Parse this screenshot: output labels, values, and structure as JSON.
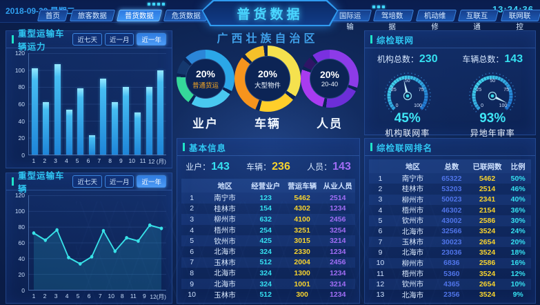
{
  "header": {
    "date": "2018-09-29 星期二",
    "time": "13:24:36",
    "title": "普货数据",
    "subtitle": "广西壮族自治区",
    "nav_left": [
      {
        "label": "首页",
        "active": false
      },
      {
        "label": "旅客数据",
        "active": false
      },
      {
        "label": "普货数据",
        "active": true
      },
      {
        "label": "危货数据",
        "active": false
      },
      {
        "label": "出租数据",
        "active": false
      }
    ],
    "nav_right": [
      {
        "label": "国际运输",
        "active": false
      },
      {
        "label": "驾培数据",
        "active": false
      },
      {
        "label": "机动维修",
        "active": false
      },
      {
        "label": "互联互通",
        "active": false
      },
      {
        "label": "联网联控",
        "active": false
      }
    ]
  },
  "range_buttons": [
    "近七天",
    "近一月",
    "近一年"
  ],
  "range_active_index": 2,
  "panels": {
    "capacity": {
      "title": "重型运输车辆运力"
    },
    "vehicle": {
      "title": "重型运输车辆"
    },
    "basic_info": {
      "title": "基本信息",
      "stats": [
        {
          "label": "业户：",
          "value": "143"
        },
        {
          "label": "车辆：",
          "value": "236"
        },
        {
          "label": "人员：",
          "value": "143"
        }
      ]
    },
    "inspection": {
      "title": "综检联网",
      "stats": [
        {
          "label": "机构总数：",
          "value": "230"
        },
        {
          "label": "车辆总数：",
          "value": "143"
        }
      ]
    },
    "ranking": {
      "title": "综检联网排名"
    }
  },
  "colors": {
    "accent_cyan": "#2fc6f2",
    "accent_teal": "#1fe3c9",
    "value_cyan": "#35e0f0",
    "value_yellow": "#f7d32e",
    "value_purple": "#a06df5",
    "value_blue": "#4f74e8",
    "bar_fill": "#2ba3e0",
    "line_stroke": "#38e2e8"
  },
  "chart_data": [
    {
      "id": "capacity_bar",
      "type": "bar",
      "title": "重型运输车辆运力",
      "categories": [
        "1",
        "2",
        "3",
        "4",
        "5",
        "6",
        "7",
        "8",
        "9",
        "10",
        "11",
        "12 (月)"
      ],
      "values": [
        102,
        62,
        107,
        53,
        78,
        23,
        90,
        62,
        80,
        50,
        80,
        100
      ],
      "xlabel": "月",
      "ylabel": "",
      "ylim": [
        0,
        120
      ],
      "yticks": [
        0,
        20,
        40,
        60,
        80,
        100,
        120
      ],
      "grid": true,
      "active_range": "近一年"
    },
    {
      "id": "vehicle_line",
      "type": "line",
      "title": "重型运输车辆",
      "categories": [
        "1",
        "2",
        "3",
        "4",
        "5",
        "6",
        "7",
        "10",
        "8",
        "11",
        "9",
        "12(月)"
      ],
      "values": [
        72,
        63,
        76,
        41,
        33,
        42,
        75,
        49,
        66,
        62,
        82,
        78
      ],
      "xlabel": "月",
      "ylabel": "",
      "ylim": [
        0,
        120
      ],
      "yticks": [
        0,
        20,
        40,
        60,
        80,
        100,
        120
      ],
      "grid": true,
      "area_fill": true,
      "active_range": "近一年"
    },
    {
      "id": "donut_operators",
      "type": "pie",
      "label": "业户",
      "center_value": "20%",
      "center_label": "普通货运",
      "segments": [
        {
          "name": "seg-sky",
          "pct": 32,
          "color": "#2ba7e8"
        },
        {
          "name": "gap",
          "pct": 2,
          "color": "#0c2455"
        },
        {
          "name": "seg-lightblue",
          "pct": 24,
          "color": "#49c8f0"
        },
        {
          "name": "gap",
          "pct": 2,
          "color": "#0c2455"
        },
        {
          "name": "seg-green",
          "pct": 16,
          "color": "#35d89a"
        },
        {
          "name": "gap",
          "pct": 2,
          "color": "#0c2455"
        },
        {
          "name": "seg-dark",
          "pct": 8,
          "color": "#15386e"
        },
        {
          "name": "gap",
          "pct": 2,
          "color": "#0c2455"
        },
        {
          "name": "seg-blue",
          "pct": 12,
          "color": "#2b86d8"
        }
      ]
    },
    {
      "id": "donut_vehicles",
      "type": "pie",
      "label": "车辆",
      "center_value": "20%",
      "center_label": "大型物件",
      "segments": [
        {
          "name": "seg-yellow",
          "pct": 34,
          "color": "#f5e14e"
        },
        {
          "name": "gap",
          "pct": 2,
          "color": "#0c2455"
        },
        {
          "name": "seg-gold",
          "pct": 18,
          "color": "#ffce2a"
        },
        {
          "name": "gap",
          "pct": 2,
          "color": "#0c2455"
        },
        {
          "name": "seg-orange",
          "pct": 30,
          "color": "#f7941d"
        },
        {
          "name": "gap",
          "pct": 2,
          "color": "#0c2455"
        },
        {
          "name": "seg-amber",
          "pct": 10,
          "color": "#f5c02a"
        },
        {
          "name": "gap",
          "pct": 2,
          "color": "#0c2455"
        }
      ]
    },
    {
      "id": "donut_personnel",
      "type": "pie",
      "label": "人员",
      "center_value": "20%",
      "center_label": "20-40",
      "segments": [
        {
          "name": "seg-purple",
          "pct": 30,
          "color": "#8d3be8"
        },
        {
          "name": "gap",
          "pct": 2,
          "color": "#0c2455"
        },
        {
          "name": "seg-violet",
          "pct": 20,
          "color": "#6c2ed8"
        },
        {
          "name": "gap",
          "pct": 2,
          "color": "#0c2455"
        },
        {
          "name": "seg-magenta",
          "pct": 26,
          "color": "#a93bf0"
        },
        {
          "name": "gap",
          "pct": 2,
          "color": "#0c2455"
        },
        {
          "name": "seg-dark",
          "pct": 6,
          "color": "#2e1566"
        },
        {
          "name": "gap",
          "pct": 2,
          "color": "#0c2455"
        },
        {
          "name": "seg-purple2",
          "pct": 8,
          "color": "#7a30e0"
        }
      ]
    },
    {
      "id": "gauge_network",
      "type": "gauge",
      "value": 45,
      "unit": "%",
      "label": "机构联网率",
      "ticks": [
        0,
        25,
        50,
        75,
        100
      ],
      "range": [
        0,
        100
      ]
    },
    {
      "id": "gauge_review",
      "type": "gauge",
      "value": 93,
      "unit": "%",
      "label": "异地年审率",
      "ticks": [
        0,
        25,
        50,
        75,
        100
      ],
      "range": [
        0,
        100
      ]
    },
    {
      "id": "basic_table",
      "type": "table",
      "headers": [
        "地区",
        "经营业户",
        "营运车辆",
        "从业人员"
      ],
      "col_classes": [
        "c-rank",
        "c-region",
        "c-cyan",
        "c-yellow",
        "c-purple"
      ],
      "rows": [
        [
          "1",
          "南宁市",
          "123",
          "5462",
          "2514"
        ],
        [
          "2",
          "桂林市",
          "154",
          "4302",
          "1234"
        ],
        [
          "3",
          "柳州市",
          "632",
          "4100",
          "2456"
        ],
        [
          "4",
          "梧州市",
          "254",
          "3251",
          "3254"
        ],
        [
          "5",
          "钦州市",
          "425",
          "3015",
          "3214"
        ],
        [
          "6",
          "北海市",
          "324",
          "2330",
          "1234"
        ],
        [
          "7",
          "玉林市",
          "512",
          "2004",
          "2456"
        ],
        [
          "8",
          "北海市",
          "324",
          "1300",
          "1234"
        ],
        [
          "9",
          "北海市",
          "324",
          "1001",
          "3214"
        ],
        [
          "10",
          "玉林市",
          "512",
          "300",
          "1234"
        ]
      ]
    },
    {
      "id": "rank_table",
      "type": "table",
      "headers": [
        "地区",
        "总数",
        "已联网数",
        "比例"
      ],
      "col_classes": [
        "c-rank",
        "c-region",
        "c-blue",
        "c-yellow",
        "c-cyan"
      ],
      "rows": [
        [
          "1",
          "南宁市",
          "65322",
          "5462",
          "50%"
        ],
        [
          "2",
          "桂林市",
          "53203",
          "2514",
          "46%"
        ],
        [
          "3",
          "柳州市",
          "50023",
          "2341",
          "40%"
        ],
        [
          "4",
          "梧州市",
          "46302",
          "2154",
          "36%"
        ],
        [
          "5",
          "钦州市",
          "43002",
          "2586",
          "30%"
        ],
        [
          "6",
          "北海市",
          "32566",
          "3524",
          "24%"
        ],
        [
          "7",
          "玉林市",
          "30023",
          "2654",
          "20%"
        ],
        [
          "9",
          "北海市",
          "23036",
          "3524",
          "18%"
        ],
        [
          "10",
          "柳州市",
          "6836",
          "2586",
          "16%"
        ],
        [
          "11",
          "梧州市",
          "5360",
          "3524",
          "12%"
        ],
        [
          "12",
          "钦州市",
          "4365",
          "2654",
          "10%"
        ],
        [
          "13",
          "北海市",
          "2356",
          "3524",
          "9%"
        ]
      ]
    }
  ]
}
